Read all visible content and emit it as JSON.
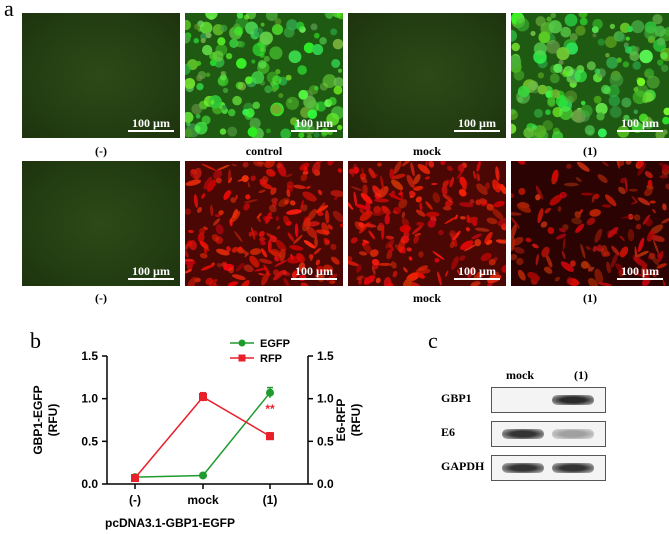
{
  "panel_a": {
    "letter": "a",
    "scale_label": "100 µm",
    "row1_captions": [
      "(-)",
      "control",
      "mock",
      "(1)"
    ],
    "row2_captions": [
      "(-)",
      "control",
      "mock",
      "(1)"
    ]
  },
  "panel_b": {
    "letter": "b",
    "legend": [
      "EGFP",
      "RFP"
    ],
    "significance": "**",
    "colors": {
      "egfp": "#1f9b2e",
      "rfp": "#e8202a"
    }
  },
  "chart_data": {
    "type": "line",
    "categories": [
      "(-)",
      "mock",
      "(1)"
    ],
    "series": [
      {
        "name": "EGFP",
        "values": [
          0.08,
          0.1,
          1.07
        ],
        "errors": [
          0.02,
          0.02,
          0.06
        ]
      },
      {
        "name": "RFP",
        "values": [
          0.07,
          1.02,
          0.56
        ],
        "errors": [
          0.02,
          0.05,
          0.04
        ]
      }
    ],
    "xlabel": "pcDNA3.1-GBP1-EGFP",
    "ylabel": "GBP1-EGFP\n(RFU)",
    "y2label": "E6-RFP\n(RFU)",
    "ylim": [
      0,
      1.5
    ],
    "yticks": [
      "0.0",
      "0.5",
      "1.0",
      "1.5"
    ],
    "grid": false,
    "legend_position": "top-right"
  },
  "panel_c": {
    "letter": "c",
    "lanes": [
      "mock",
      "(1)"
    ],
    "rows": [
      {
        "label": "GBP1",
        "lane1": 0.0,
        "lane2": 0.9
      },
      {
        "label": "E6",
        "lane1": 0.85,
        "lane2": 0.35
      },
      {
        "label": "GAPDH",
        "lane1": 0.85,
        "lane2": 0.85
      }
    ]
  }
}
